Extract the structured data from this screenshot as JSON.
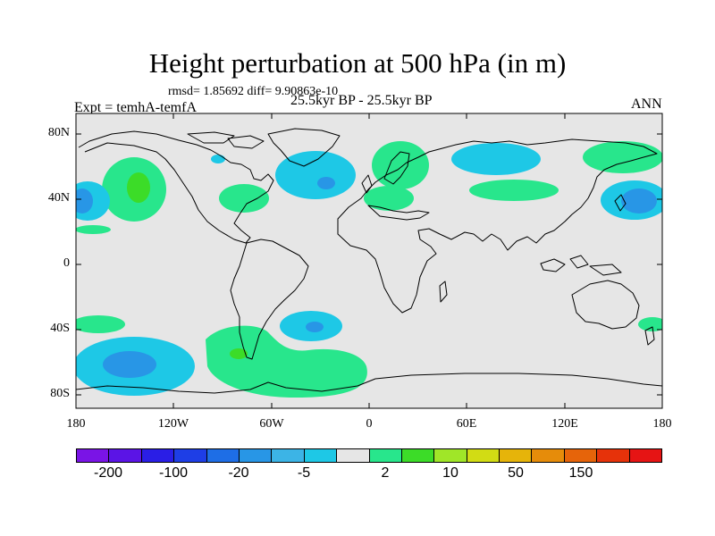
{
  "title": "Height perturbation at 500 hPa (in m)",
  "stats": "rmsd= 1.85692 diff= 9.90863e-10",
  "experiment": "Expt = temhA-temfA",
  "period": "25.5kyr BP - 25.5kyr BP",
  "season": "ANN",
  "lat_ticks": [
    "80N",
    "40N",
    "0",
    "40S",
    "80S"
  ],
  "lon_ticks": [
    "180",
    "120W",
    "60W",
    "0",
    "60E",
    "120E",
    "180"
  ],
  "colorbar": {
    "labels": [
      "-200",
      "-100",
      "-20",
      "-5",
      "2",
      "10",
      "50",
      "150"
    ],
    "colors": [
      "#7a14e6",
      "#5b14e6",
      "#2a1ee6",
      "#1e3ee6",
      "#1e6ee6",
      "#2896e6",
      "#3cb4e6",
      "#1ec8e6",
      "#e6e6e6",
      "#28e68c",
      "#3cdc28",
      "#a0e628",
      "#d2dc14",
      "#e6b40a",
      "#e68c0a",
      "#e6640a",
      "#e6320a",
      "#e61414"
    ]
  },
  "colors": {
    "ocean_bg": "#e6e6e6",
    "positive_2_10": "#28e68c",
    "positive_10_50": "#3cdc28",
    "negative_5_2": "#1ec8e6",
    "negative_20_5": "#2896e6",
    "coast": "#000000"
  }
}
